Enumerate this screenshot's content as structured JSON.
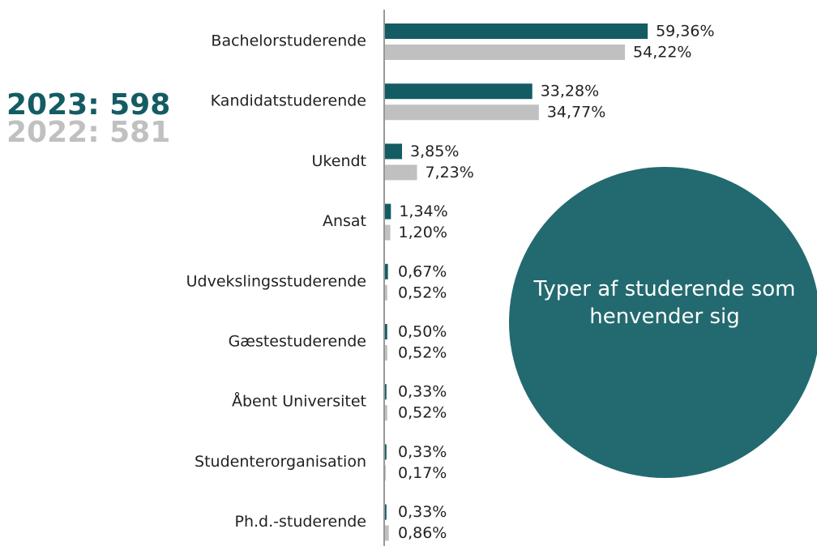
{
  "chart_data": {
    "type": "bar",
    "orientation": "horizontal",
    "title": "Typer af studerende som henvender sig",
    "categories": [
      "Bachelorstuderende",
      "Kandidatstuderende",
      "Ukendt",
      "Ansat",
      "Udvekslingsstuderende",
      "Gæstestuderende",
      "Åbent Universitet",
      "Studenterorganisation",
      "Ph.d.-studerende"
    ],
    "series": [
      {
        "name": "2023: 598",
        "color": "#145c63",
        "values": [
          59.36,
          33.28,
          3.85,
          1.34,
          0.67,
          0.5,
          0.33,
          0.33,
          0.33
        ],
        "value_labels": [
          "59,36%",
          "33,28%",
          "3,85%",
          "1,34%",
          "0,67%",
          "0,50%",
          "0,33%",
          "0,33%",
          "0,33%"
        ]
      },
      {
        "name": "2022: 581",
        "color": "#c0c0c0",
        "values": [
          54.22,
          34.77,
          7.23,
          1.2,
          0.52,
          0.52,
          0.52,
          0.17,
          0.86
        ],
        "value_labels": [
          "54,22%",
          "34,77%",
          "7,23%",
          "1,20%",
          "0,52%",
          "0,52%",
          "0,52%",
          "0,17%",
          "0,86%"
        ]
      }
    ],
    "xlim": [
      0,
      100
    ],
    "circle_color": "#236a70"
  }
}
